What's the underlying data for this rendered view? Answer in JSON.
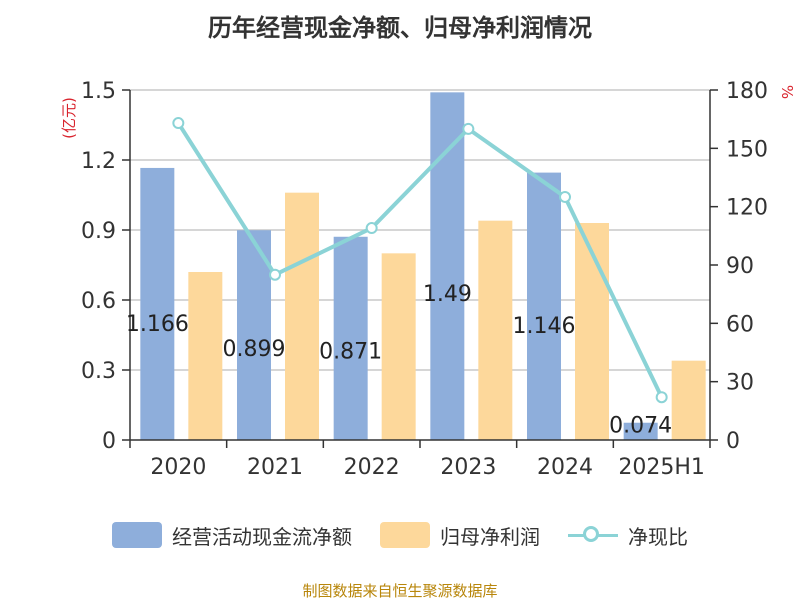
{
  "chart_data": {
    "type": "bar",
    "title": "历年经营现金净额、归母净利润情况",
    "categories": [
      "2020",
      "2021",
      "2022",
      "2023",
      "2024",
      "2025H1"
    ],
    "series": [
      {
        "name": "经营活动现金流净额",
        "type": "bar",
        "axis": "left",
        "color": "#8eaedb",
        "values": [
          1.166,
          0.899,
          0.871,
          1.49,
          1.146,
          0.074
        ],
        "labels": [
          "1.166",
          "0.899",
          "0.871",
          "1.49",
          "1.146",
          "0.074"
        ]
      },
      {
        "name": "归母净利润",
        "type": "bar",
        "axis": "left",
        "color": "#fdd89b",
        "values": [
          0.72,
          1.06,
          0.8,
          0.94,
          0.93,
          0.34
        ]
      },
      {
        "name": "净现比",
        "type": "line",
        "axis": "right",
        "color": "#8bd3d6",
        "values": [
          163,
          85,
          109,
          160,
          125,
          22
        ]
      }
    ],
    "yleft": {
      "label": "(亿元)",
      "ylim": [
        0,
        1.5
      ],
      "ticks": [
        "0",
        "0.3",
        "0.6",
        "0.9",
        "1.2",
        "1.5"
      ]
    },
    "yright": {
      "label": "%",
      "ylim": [
        0,
        180
      ],
      "ticks": [
        "0",
        "30",
        "60",
        "90",
        "120",
        "150",
        "180"
      ]
    },
    "grid": true,
    "legend_position": "bottom"
  },
  "source_note": "制图数据来自恒生聚源数据库"
}
